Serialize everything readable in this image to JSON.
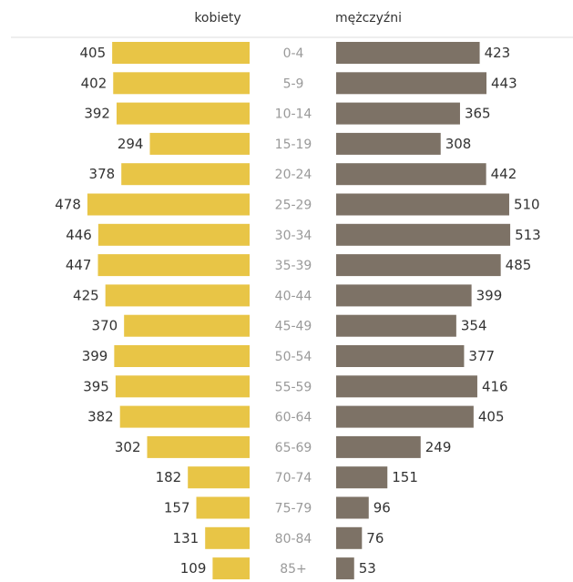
{
  "chart_data": {
    "type": "bar",
    "subtype": "population-pyramid",
    "title": "",
    "xlabel": "",
    "ylabel": "",
    "categories": [
      "0-4",
      "5-9",
      "10-14",
      "15-19",
      "20-24",
      "25-29",
      "30-34",
      "35-39",
      "40-44",
      "45-49",
      "50-54",
      "55-59",
      "60-64",
      "65-69",
      "70-74",
      "75-79",
      "80-84",
      "85+"
    ],
    "series": [
      {
        "name": "kobiety",
        "side": "left",
        "color": "#e8c546",
        "values": [
          405,
          402,
          392,
          294,
          378,
          478,
          446,
          447,
          425,
          370,
          399,
          395,
          382,
          302,
          182,
          157,
          131,
          109
        ]
      },
      {
        "name": "mężczyźni",
        "side": "right",
        "color": "#7d7266",
        "values": [
          423,
          443,
          365,
          308,
          442,
          510,
          513,
          485,
          399,
          354,
          377,
          416,
          405,
          249,
          151,
          96,
          76,
          53
        ]
      }
    ],
    "legend": "top",
    "grid": false,
    "data_labels": true
  }
}
